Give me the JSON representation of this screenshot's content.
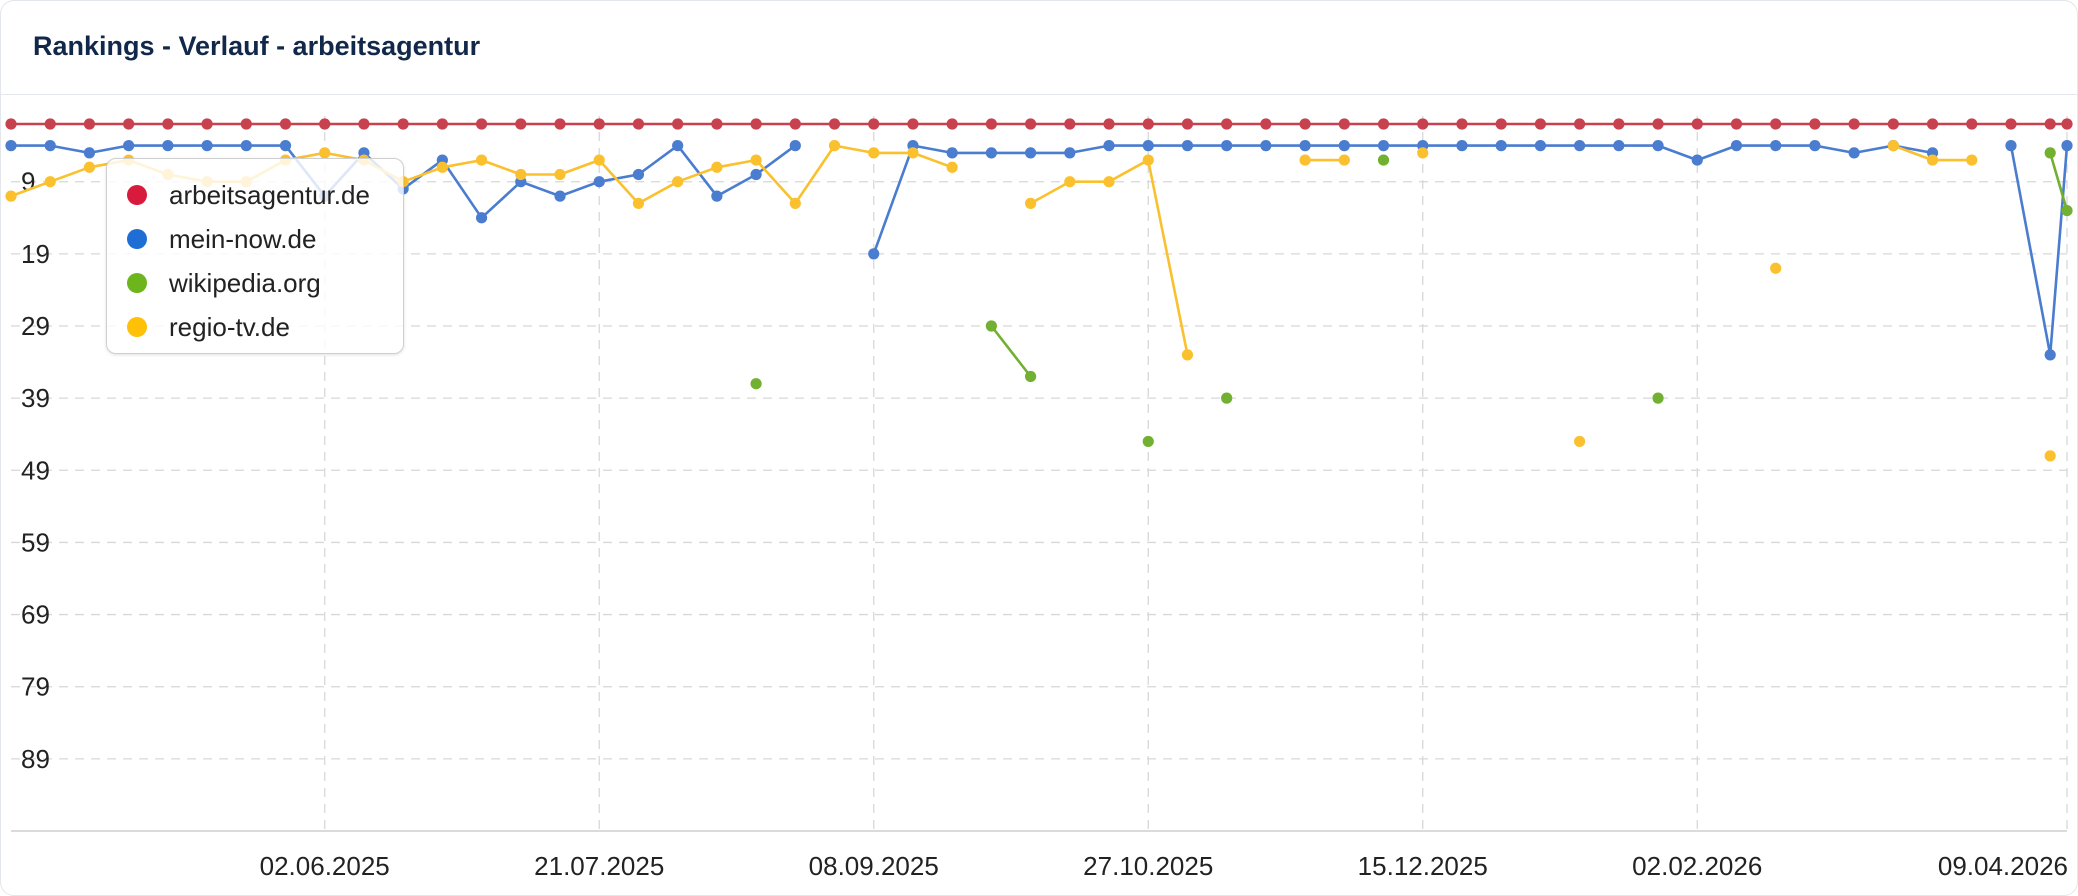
{
  "card": {
    "title": "Rankings - Verlauf - arbeitsagentur"
  },
  "chart_data": {
    "type": "line",
    "x": [
      "07.04.2025",
      "14.04.2025",
      "21.04.2025",
      "28.04.2025",
      "05.05.2025",
      "12.05.2025",
      "19.05.2025",
      "26.05.2025",
      "02.06.2025",
      "09.06.2025",
      "16.06.2025",
      "23.06.2025",
      "30.06.2025",
      "07.07.2025",
      "14.07.2025",
      "21.07.2025",
      "28.07.2025",
      "04.08.2025",
      "11.08.2025",
      "18.08.2025",
      "25.08.2025",
      "01.09.2025",
      "08.09.2025",
      "15.09.2025",
      "22.09.2025",
      "29.09.2025",
      "06.10.2025",
      "13.10.2025",
      "20.10.2025",
      "27.10.2025",
      "03.11.2025",
      "10.11.2025",
      "17.11.2025",
      "24.11.2025",
      "01.12.2025",
      "08.12.2025",
      "15.12.2025",
      "22.12.2025",
      "29.12.2025",
      "05.01.2026",
      "12.01.2026",
      "19.01.2026",
      "26.01.2026",
      "02.02.2026",
      "09.02.2026",
      "16.02.2026",
      "23.02.2026",
      "02.03.2026",
      "09.03.2026",
      "16.03.2026",
      "23.03.2026",
      "30.03.2026",
      "06.04.2026",
      "09.04.2026"
    ],
    "series": [
      {
        "name": "arbeitsagentur.de",
        "color": "#c8414f",
        "values": [
          1,
          1,
          1,
          1,
          1,
          1,
          1,
          1,
          1,
          1,
          1,
          1,
          1,
          1,
          1,
          1,
          1,
          1,
          1,
          1,
          1,
          1,
          1,
          1,
          1,
          1,
          1,
          1,
          1,
          1,
          1,
          1,
          1,
          1,
          1,
          1,
          1,
          1,
          1,
          1,
          1,
          1,
          1,
          1,
          1,
          1,
          1,
          1,
          1,
          1,
          1,
          1,
          1,
          1
        ]
      },
      {
        "name": "mein-now.de",
        "color": "#4a7cd0",
        "values": [
          4,
          4,
          5,
          4,
          4,
          4,
          4,
          4,
          11,
          5,
          10,
          6,
          14,
          9,
          11,
          9,
          8,
          4,
          11,
          8,
          4,
          null,
          19,
          4,
          5,
          5,
          5,
          5,
          4,
          4,
          4,
          4,
          4,
          4,
          4,
          4,
          4,
          4,
          4,
          4,
          4,
          4,
          4,
          6,
          4,
          4,
          4,
          5,
          4,
          5,
          null,
          4,
          33,
          4
        ]
      },
      {
        "name": "wikipedia.org",
        "color": "#71b030",
        "values": [
          null,
          null,
          null,
          null,
          null,
          null,
          null,
          null,
          null,
          null,
          null,
          null,
          null,
          null,
          null,
          null,
          null,
          null,
          null,
          37,
          null,
          null,
          null,
          null,
          null,
          29,
          36,
          null,
          null,
          45,
          null,
          39,
          null,
          null,
          null,
          6,
          null,
          null,
          null,
          null,
          null,
          null,
          39,
          null,
          null,
          null,
          null,
          null,
          null,
          null,
          null,
          null,
          5,
          13
        ]
      },
      {
        "name": "regio-tv.de",
        "color": "#fbc02d",
        "values": [
          11,
          9,
          7,
          6,
          8,
          9,
          9,
          6,
          5,
          6,
          9,
          7,
          6,
          8,
          8,
          6,
          12,
          9,
          7,
          6,
          12,
          4,
          5,
          5,
          7,
          null,
          12,
          9,
          9,
          6,
          33,
          null,
          null,
          6,
          6,
          null,
          5,
          null,
          null,
          null,
          45,
          null,
          null,
          null,
          null,
          21,
          null,
          null,
          4,
          6,
          6,
          null,
          47,
          null
        ]
      }
    ],
    "y_ticks": [
      9,
      19,
      29,
      39,
      49,
      59,
      69,
      79,
      89
    ],
    "x_tick_labels": [
      "02.06.2025",
      "21.07.2025",
      "08.09.2025",
      "27.10.2025",
      "15.12.2025",
      "02.02.2026",
      "09.04.2026"
    ],
    "ylim": [
      1,
      99
    ],
    "y_reversed": true,
    "grid": true,
    "legend_position": "top-left"
  }
}
